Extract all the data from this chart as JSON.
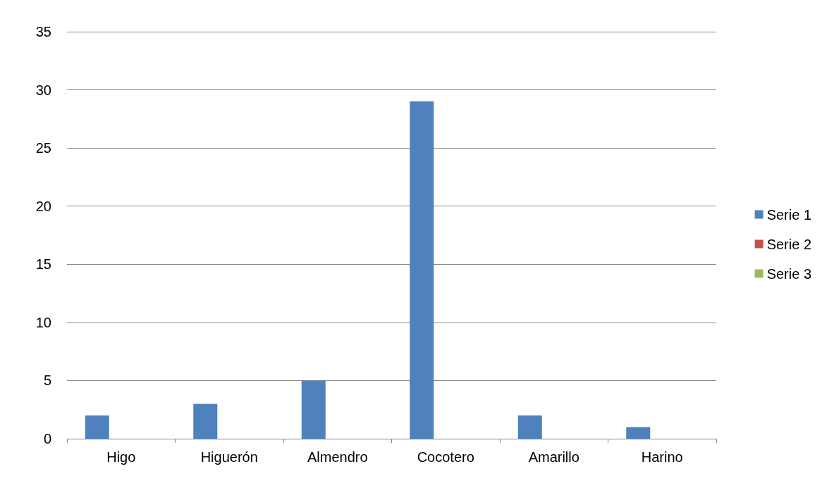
{
  "chart_data": {
    "type": "bar",
    "categories": [
      "Higo",
      "Higuerón",
      "Almendro",
      "Cocotero",
      "Amarillo",
      "Harino"
    ],
    "series": [
      {
        "name": "Serie 1",
        "color": "#4f81bd",
        "values": [
          2,
          3,
          5,
          29,
          2,
          1
        ]
      },
      {
        "name": "Serie 2",
        "color": "#c0504d",
        "values": [
          null,
          null,
          null,
          null,
          null,
          null
        ]
      },
      {
        "name": "Serie 3",
        "color": "#9bbb59",
        "values": [
          null,
          null,
          null,
          null,
          null,
          null
        ]
      }
    ],
    "ylim": [
      0,
      35
    ],
    "yticks": [
      0,
      5,
      10,
      15,
      20,
      25,
      30,
      35
    ],
    "grid": "y",
    "legend": "right"
  }
}
